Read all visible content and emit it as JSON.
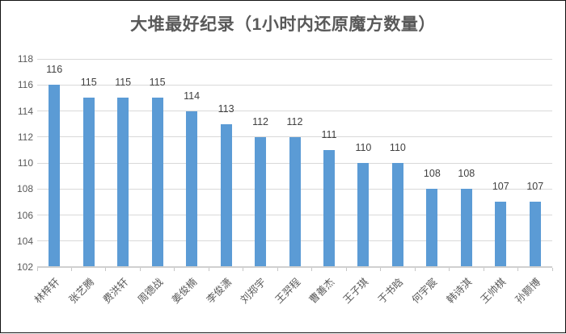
{
  "window": {
    "background": "#ffffff",
    "border_color": "#111111"
  },
  "chart_data": {
    "type": "bar",
    "title": "大堆最好纪录（1小时内还原魔方数量）",
    "categories": [
      "林梓轩",
      "张艺腾",
      "费洪轩",
      "周德战",
      "姜俊楠",
      "李俊潇",
      "刘郑宇",
      "王羿程",
      "曹善杰",
      "王子琪",
      "于书晗",
      "何宇宸",
      "韩诗淇",
      "王帅棋",
      "孙颢博"
    ],
    "values": [
      116,
      115,
      115,
      115,
      114,
      113,
      112,
      112,
      111,
      110,
      110,
      108,
      108,
      107,
      107
    ],
    "data_labels": [
      "116",
      "115",
      "115",
      "115",
      "114",
      "113",
      "112",
      "112",
      "111",
      "110",
      "110",
      "108",
      "108",
      "107",
      "107"
    ],
    "xlabel": "",
    "ylabel": "",
    "ylim": [
      102,
      118
    ],
    "ytick_step": 2,
    "ytick_labels": [
      "102",
      "104",
      "106",
      "108",
      "110",
      "112",
      "114",
      "116",
      "118"
    ],
    "grid": true,
    "legend": "none",
    "bar_color": "#5B9BD5",
    "gridline_color": "#D9D9D9",
    "axis_line_color": "#D0D0D0",
    "title_color": "#595959",
    "tick_label_color": "#595959",
    "data_label_color": "#404040"
  }
}
